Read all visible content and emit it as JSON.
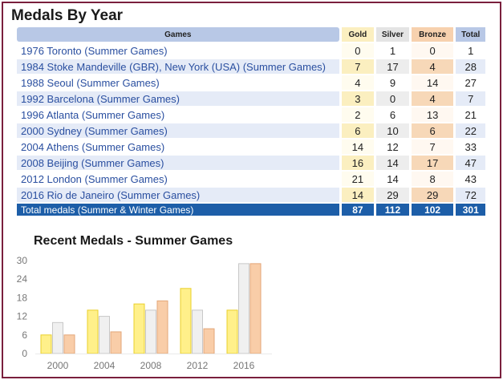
{
  "section_title": "Medals By Year",
  "table": {
    "headers": {
      "games": "Games",
      "gold": "Gold",
      "silver": "Silver",
      "bronze": "Bronze",
      "total": "Total"
    },
    "rows": [
      {
        "games": "1976 Toronto (Summer Games)",
        "gold": "0",
        "silver": "1",
        "bronze": "0",
        "total": "1"
      },
      {
        "games": "1984 Stoke Mandeville (GBR), New York (USA) (Summer Games)",
        "gold": "7",
        "silver": "17",
        "bronze": "4",
        "total": "28"
      },
      {
        "games": "1988 Seoul (Summer Games)",
        "gold": "4",
        "silver": "9",
        "bronze": "14",
        "total": "27"
      },
      {
        "games": "1992 Barcelona (Summer Games)",
        "gold": "3",
        "silver": "0",
        "bronze": "4",
        "total": "7"
      },
      {
        "games": "1996 Atlanta (Summer Games)",
        "gold": "2",
        "silver": "6",
        "bronze": "13",
        "total": "21"
      },
      {
        "games": "2000 Sydney (Summer Games)",
        "gold": "6",
        "silver": "10",
        "bronze": "6",
        "total": "22"
      },
      {
        "games": "2004 Athens (Summer Games)",
        "gold": "14",
        "silver": "12",
        "bronze": "7",
        "total": "33"
      },
      {
        "games": "2008 Beijing (Summer Games)",
        "gold": "16",
        "silver": "14",
        "bronze": "17",
        "total": "47"
      },
      {
        "games": "2012 London (Summer Games)",
        "gold": "21",
        "silver": "14",
        "bronze": "8",
        "total": "43"
      },
      {
        "games": "2016 Rio de Janeiro (Summer Games)",
        "gold": "14",
        "silver": "29",
        "bronze": "29",
        "total": "72"
      }
    ],
    "total_row": {
      "label": "Total medals (Summer & Winter Games)",
      "gold": "87",
      "silver": "112",
      "bronze": "102",
      "total": "301"
    }
  },
  "chart_title": "Recent Medals - Summer Games",
  "chart_data": {
    "type": "bar",
    "title": "Recent Medals - Summer Games",
    "categories": [
      "2000",
      "2004",
      "2008",
      "2012",
      "2016"
    ],
    "series": [
      {
        "values": [
          6,
          14,
          16,
          21,
          14
        ]
      },
      {
        "values": [
          10,
          12,
          14,
          14,
          29
        ]
      },
      {
        "values": [
          6,
          7,
          17,
          8,
          29
        ]
      }
    ],
    "colors": {
      "gold_fill": "#fff08a",
      "gold_stroke": "#e9cf2a",
      "silver_fill": "#f0f0f0",
      "silver_stroke": "#c8c8c8",
      "bronze_fill": "#f9cda8",
      "bronze_stroke": "#e3a678"
    },
    "ylim": [
      0,
      30
    ],
    "yticks": [
      "0",
      "6",
      "12",
      "18",
      "24",
      "30"
    ],
    "grid": false,
    "legend": "none"
  }
}
